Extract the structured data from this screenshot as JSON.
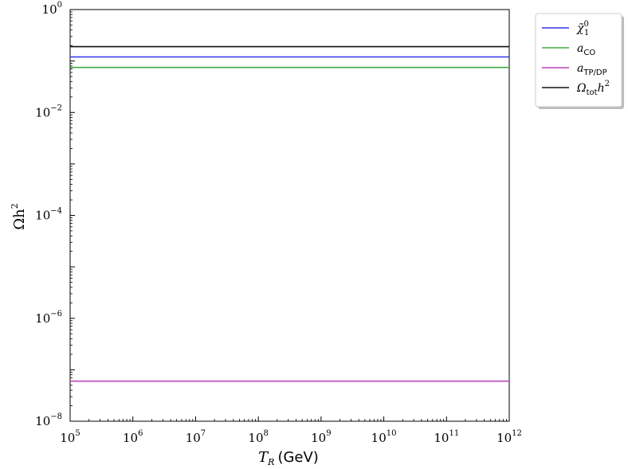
{
  "chart_data": {
    "type": "line",
    "xscale": "log",
    "yscale": "log",
    "xlim": [
      100000,
      1000000000000
    ],
    "ylim": [
      1e-08,
      1
    ],
    "x_ticks": [
      {
        "base": "10",
        "exp": "5"
      },
      {
        "base": "10",
        "exp": "6"
      },
      {
        "base": "10",
        "exp": "7"
      },
      {
        "base": "10",
        "exp": "8"
      },
      {
        "base": "10",
        "exp": "9"
      },
      {
        "base": "10",
        "exp": "10"
      },
      {
        "base": "10",
        "exp": "11"
      },
      {
        "base": "10",
        "exp": "12"
      }
    ],
    "y_ticks": [
      {
        "base": "10",
        "exp": "0"
      },
      {
        "base": "10",
        "exp": "−2"
      },
      {
        "base": "10",
        "exp": "−4"
      },
      {
        "base": "10",
        "exp": "−6"
      },
      {
        "base": "10",
        "exp": "−8"
      }
    ],
    "xlabel": {
      "main": "T",
      "sub": "R",
      "unit": "(GeV)"
    },
    "ylabel": {
      "main": "Ωh",
      "sup": "2"
    },
    "grid": false,
    "legend_position": "outside-top-right",
    "series": [
      {
        "label_main": "χ̃",
        "label_sub": "1",
        "label_sup": "0",
        "color": "#3333ee",
        "x": [
          100000,
          1000000000000
        ],
        "y": [
          0.12,
          0.12
        ]
      },
      {
        "label_main": "a",
        "label_sub": "CO",
        "label_sup": "",
        "color": "#44aa44",
        "x": [
          100000,
          1000000000000
        ],
        "y": [
          0.075,
          0.075
        ]
      },
      {
        "label_main": "a",
        "label_sub": "TP/DP",
        "label_sup": "",
        "color": "#bb44bb",
        "x": [
          100000,
          1000000000000
        ],
        "y": [
          6e-08,
          6e-08
        ]
      },
      {
        "label_main": "Ω",
        "label_sub": "tot",
        "label_sup": "h",
        "label_sup2": "2",
        "color": "#111111",
        "x": [
          100000,
          1000000000000
        ],
        "y": [
          0.19,
          0.19
        ]
      }
    ]
  }
}
